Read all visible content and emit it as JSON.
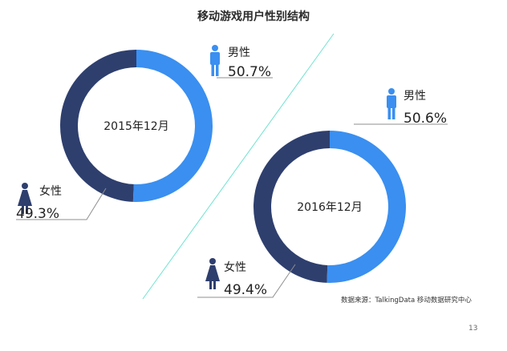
{
  "title": "移动游戏用户性别结构",
  "source": "数据来源：TalkingData 移动数据研究中心",
  "page_number": "13",
  "colors": {
    "male": "#3a8ff0",
    "female": "#2e3f6e",
    "divider": "#6ee3d0",
    "leader": "#8f8f8f"
  },
  "icons": {
    "male": "male-person-icon",
    "female": "female-person-icon"
  },
  "chart_data": [
    {
      "type": "pie",
      "center_label": "2015年12月",
      "slices": [
        {
          "label": "男性",
          "value": 50.7,
          "value_label": "50.7%"
        },
        {
          "label": "女性",
          "value": 49.3,
          "value_label": "49.3%"
        }
      ]
    },
    {
      "type": "pie",
      "center_label": "2016年12月",
      "slices": [
        {
          "label": "男性",
          "value": 50.6,
          "value_label": "50.6%"
        },
        {
          "label": "女性",
          "value": 49.4,
          "value_label": "49.4%"
        }
      ]
    }
  ]
}
